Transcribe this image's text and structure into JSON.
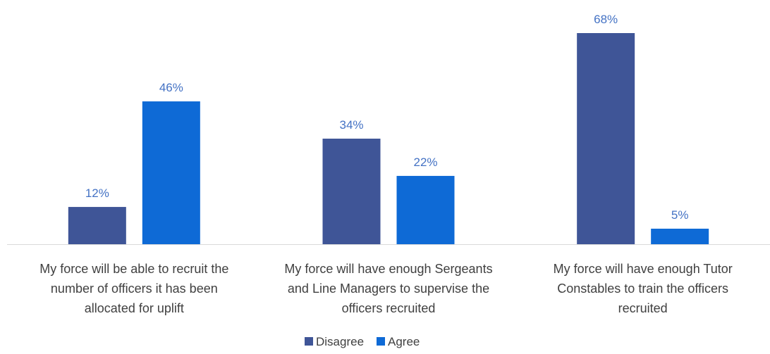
{
  "chart_data": {
    "type": "bar",
    "categories": [
      [
        "My force will be able to recruit the",
        "number of officers it has been",
        "allocated for uplift"
      ],
      [
        "My force will have enough Sergeants",
        "and Line Managers to supervise the",
        "officers recruited"
      ],
      [
        "My force will have enough Tutor",
        "Constables to train the officers",
        "recruited"
      ]
    ],
    "series": [
      {
        "name": "Disagree",
        "values": [
          12,
          34,
          68
        ],
        "labels": [
          "12%",
          "34%",
          "68%"
        ],
        "color": "#3F5597"
      },
      {
        "name": "Agree",
        "values": [
          46,
          22,
          5
        ],
        "labels": [
          "46%",
          "22%",
          "5%"
        ],
        "color": "#0E6AD6"
      }
    ],
    "value_unit": "%",
    "ylim": [
      0,
      68
    ],
    "grid": false,
    "legend_position": "bottom"
  }
}
